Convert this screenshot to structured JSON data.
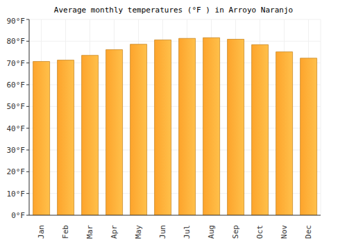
{
  "chart_data": {
    "type": "bar",
    "title": "Average monthly temperatures (°F ) in Arroyo Naranjo",
    "categories": [
      "Jan",
      "Feb",
      "Mar",
      "Apr",
      "May",
      "Jun",
      "Jul",
      "Aug",
      "Sep",
      "Oct",
      "Nov",
      "Dec"
    ],
    "values": [
      70.7,
      71.3,
      73.5,
      76.1,
      78.6,
      80.6,
      81.3,
      81.6,
      80.9,
      78.4,
      75.1,
      72.2
    ],
    "color": "#fda42c",
    "ylim": [
      0,
      90
    ],
    "yticks": [
      {
        "value": 0,
        "label": "0°F"
      },
      {
        "value": 10,
        "label": "10°F"
      },
      {
        "value": 20,
        "label": "20°F"
      },
      {
        "value": 30,
        "label": "30°F"
      },
      {
        "value": 40,
        "label": "40°F"
      },
      {
        "value": 50,
        "label": "50°F"
      },
      {
        "value": 60,
        "label": "60°F"
      },
      {
        "value": 70,
        "label": "70°F"
      },
      {
        "value": 80,
        "label": "80°F"
      },
      {
        "value": 90,
        "label": "90°F"
      }
    ],
    "grid": true
  }
}
